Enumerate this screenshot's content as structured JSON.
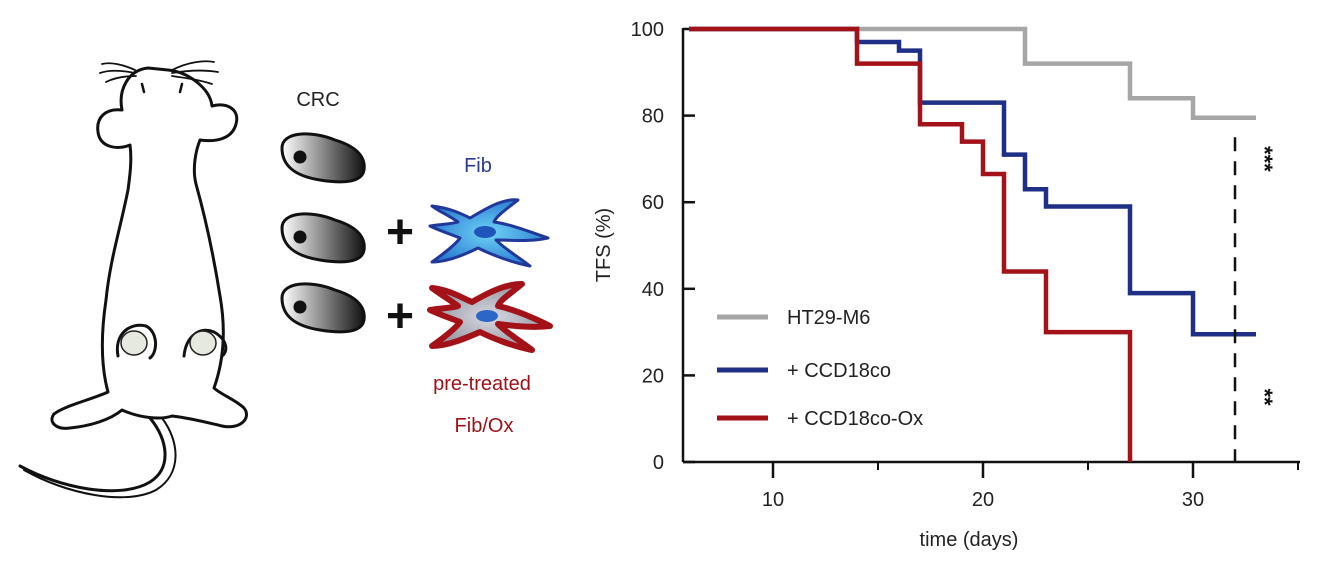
{
  "illustration": {
    "crc_label": "CRC",
    "fib_label": "Fib",
    "pretreated_label_line1": "pre-treated",
    "pretreated_label_line2": "Fib/Ox",
    "plus_symbol": "+",
    "colors": {
      "fib_blue": "#2a3b8f",
      "fib_red": "#9e0f16",
      "cell_blue": "#2f80d8",
      "cell_red": "#a31219"
    }
  },
  "chart_data": {
    "type": "line",
    "step": true,
    "xlabel": "time (days)",
    "ylabel": "TFS (%)",
    "xlim": [
      6,
      35
    ],
    "ylim": [
      0,
      100
    ],
    "xticks": [
      10,
      20,
      30
    ],
    "yticks": [
      0,
      20,
      40,
      60,
      80,
      100
    ],
    "grid": false,
    "legend_position": "bottom-left",
    "series": [
      {
        "name": "HT29-M6",
        "color": "#a6a6a6",
        "x": [
          6,
          22,
          22,
          27,
          27,
          30,
          30,
          33
        ],
        "y": [
          100,
          100,
          92,
          92,
          84,
          84,
          79.5,
          79.5
        ]
      },
      {
        "name": "+ CCD18co",
        "color": "#1f2f86",
        "x": [
          6,
          14,
          14,
          16,
          16,
          17,
          17,
          21,
          21,
          22,
          22,
          23,
          23,
          27,
          27,
          30,
          30,
          33
        ],
        "y": [
          100,
          100,
          97,
          97,
          95,
          95,
          83,
          83,
          71,
          71,
          63,
          63,
          59,
          59,
          39,
          39,
          29.5,
          29.5
        ]
      },
      {
        "name": "+ CCD18co-Ox",
        "color": "#a31219",
        "x": [
          6,
          14,
          14,
          17,
          17,
          19,
          19,
          20,
          20,
          21,
          21,
          23,
          23,
          27,
          27
        ],
        "y": [
          100,
          100,
          92,
          92,
          78,
          78,
          74,
          74,
          66.5,
          66.5,
          44,
          44,
          30,
          30,
          0
        ]
      }
    ],
    "annotations": [
      {
        "text": "***",
        "x": 32,
        "y": 70,
        "rotated": true
      },
      {
        "text": "**",
        "x": 32,
        "y": 15,
        "rotated": true
      }
    ],
    "dashed_marker": {
      "x": 32,
      "y_from": 0,
      "y_to": 75
    }
  }
}
